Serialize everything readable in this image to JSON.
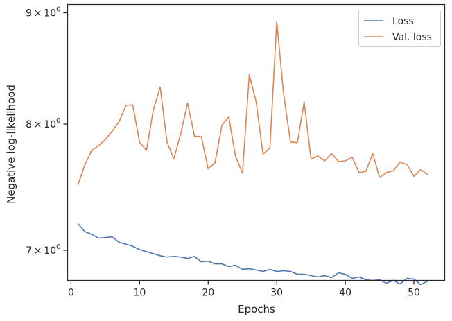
{
  "chart_data": {
    "type": "line",
    "title": "",
    "xlabel": "Epochs",
    "ylabel": "Negative log-likelihood",
    "yscale": "log",
    "xlim": [
      -0.5,
      54.5
    ],
    "ylim": [
      6.78,
      9.08
    ],
    "xticks": [
      0,
      10,
      20,
      30,
      40,
      50
    ],
    "xtick_labels": [
      "0",
      "10",
      "20",
      "30",
      "40",
      "50"
    ],
    "yticks": [
      7,
      8,
      9
    ],
    "ytick_labels": [
      {
        "base": "7",
        "exp": "0"
      },
      {
        "base": "8",
        "exp": "0"
      },
      {
        "base": "9",
        "exp": "0"
      }
    ],
    "times_symbol": "×",
    "grid": false,
    "legend_position": "top-right",
    "x": [
      1,
      2,
      3,
      4,
      5,
      6,
      7,
      8,
      9,
      10,
      11,
      12,
      13,
      14,
      15,
      16,
      17,
      18,
      19,
      20,
      21,
      22,
      23,
      24,
      25,
      26,
      27,
      28,
      29,
      30,
      31,
      32,
      33,
      34,
      35,
      36,
      37,
      38,
      39,
      40,
      41,
      42,
      43,
      44,
      45,
      46,
      47,
      48,
      49,
      50,
      51,
      52
    ],
    "series": [
      {
        "name": "Loss",
        "color": "#4c72b0",
        "values": [
          7.2,
          7.14,
          7.12,
          7.09,
          7.095,
          7.1,
          7.06,
          7.045,
          7.03,
          7.005,
          6.99,
          6.975,
          6.96,
          6.95,
          6.955,
          6.95,
          6.94,
          6.955,
          6.915,
          6.92,
          6.9,
          6.9,
          6.88,
          6.89,
          6.86,
          6.865,
          6.855,
          6.845,
          6.86,
          6.845,
          6.85,
          6.845,
          6.825,
          6.825,
          6.815,
          6.805,
          6.815,
          6.8,
          6.835,
          6.825,
          6.795,
          6.805,
          6.785,
          6.78,
          6.785,
          6.76,
          6.78,
          6.755,
          6.795,
          6.79,
          6.75,
          6.775
        ]
      },
      {
        "name": "Val. loss",
        "color": "#dd8452",
        "values": [
          7.5,
          7.66,
          7.78,
          7.82,
          7.87,
          7.94,
          8.02,
          8.16,
          8.165,
          7.85,
          7.78,
          8.12,
          8.32,
          7.85,
          7.71,
          7.92,
          8.18,
          7.9,
          7.895,
          7.63,
          7.68,
          7.99,
          8.06,
          7.73,
          7.595,
          8.43,
          8.19,
          7.75,
          7.8,
          8.92,
          8.26,
          7.85,
          7.845,
          8.19,
          7.71,
          7.735,
          7.695,
          7.755,
          7.69,
          7.695,
          7.725,
          7.6,
          7.61,
          7.755,
          7.56,
          7.6,
          7.615,
          7.685,
          7.665,
          7.57,
          7.625,
          7.585
        ]
      }
    ]
  }
}
